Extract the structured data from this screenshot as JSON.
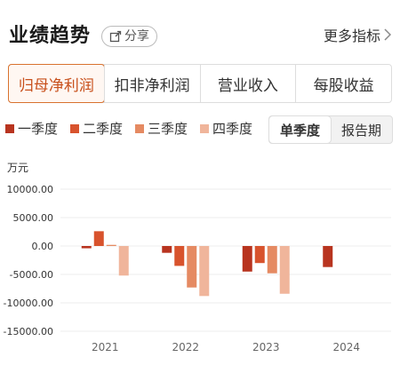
{
  "header": {
    "title": "业绩趋势",
    "share_label": "分享",
    "more_label": "更多指标"
  },
  "tabs": [
    {
      "label": "归母净利润",
      "active": true
    },
    {
      "label": "扣非净利润",
      "active": false
    },
    {
      "label": "营业收入",
      "active": false
    },
    {
      "label": "每股收益",
      "active": false
    }
  ],
  "toggle": {
    "options": [
      "单季度",
      "报告期"
    ],
    "selected": "单季度"
  },
  "colors": {
    "q1": "#b8341f",
    "q2": "#d8532d",
    "q3": "#e58a62",
    "q4": "#f0b59b",
    "accent": "#d9722e"
  },
  "chart_data": {
    "type": "bar",
    "unit_label": "万元",
    "categories": [
      "2021",
      "2022",
      "2023",
      "2024"
    ],
    "series": [
      {
        "name": "一季度",
        "values": [
          -400,
          -1200,
          -4500,
          -3700
        ]
      },
      {
        "name": "二季度",
        "values": [
          2600,
          -3500,
          -3000,
          null
        ]
      },
      {
        "name": "三季度",
        "values": [
          200,
          -7300,
          -4800,
          null
        ]
      },
      {
        "name": "四季度",
        "values": [
          -5200,
          -8800,
          -8400,
          null
        ]
      }
    ],
    "y_ticks": [
      "10000.00",
      "5000.00",
      "0.00",
      "-5000.00",
      "-10000.00",
      "-15000.00"
    ],
    "ylim": [
      -15000,
      10000
    ],
    "grid": true,
    "legend": "top-left"
  }
}
